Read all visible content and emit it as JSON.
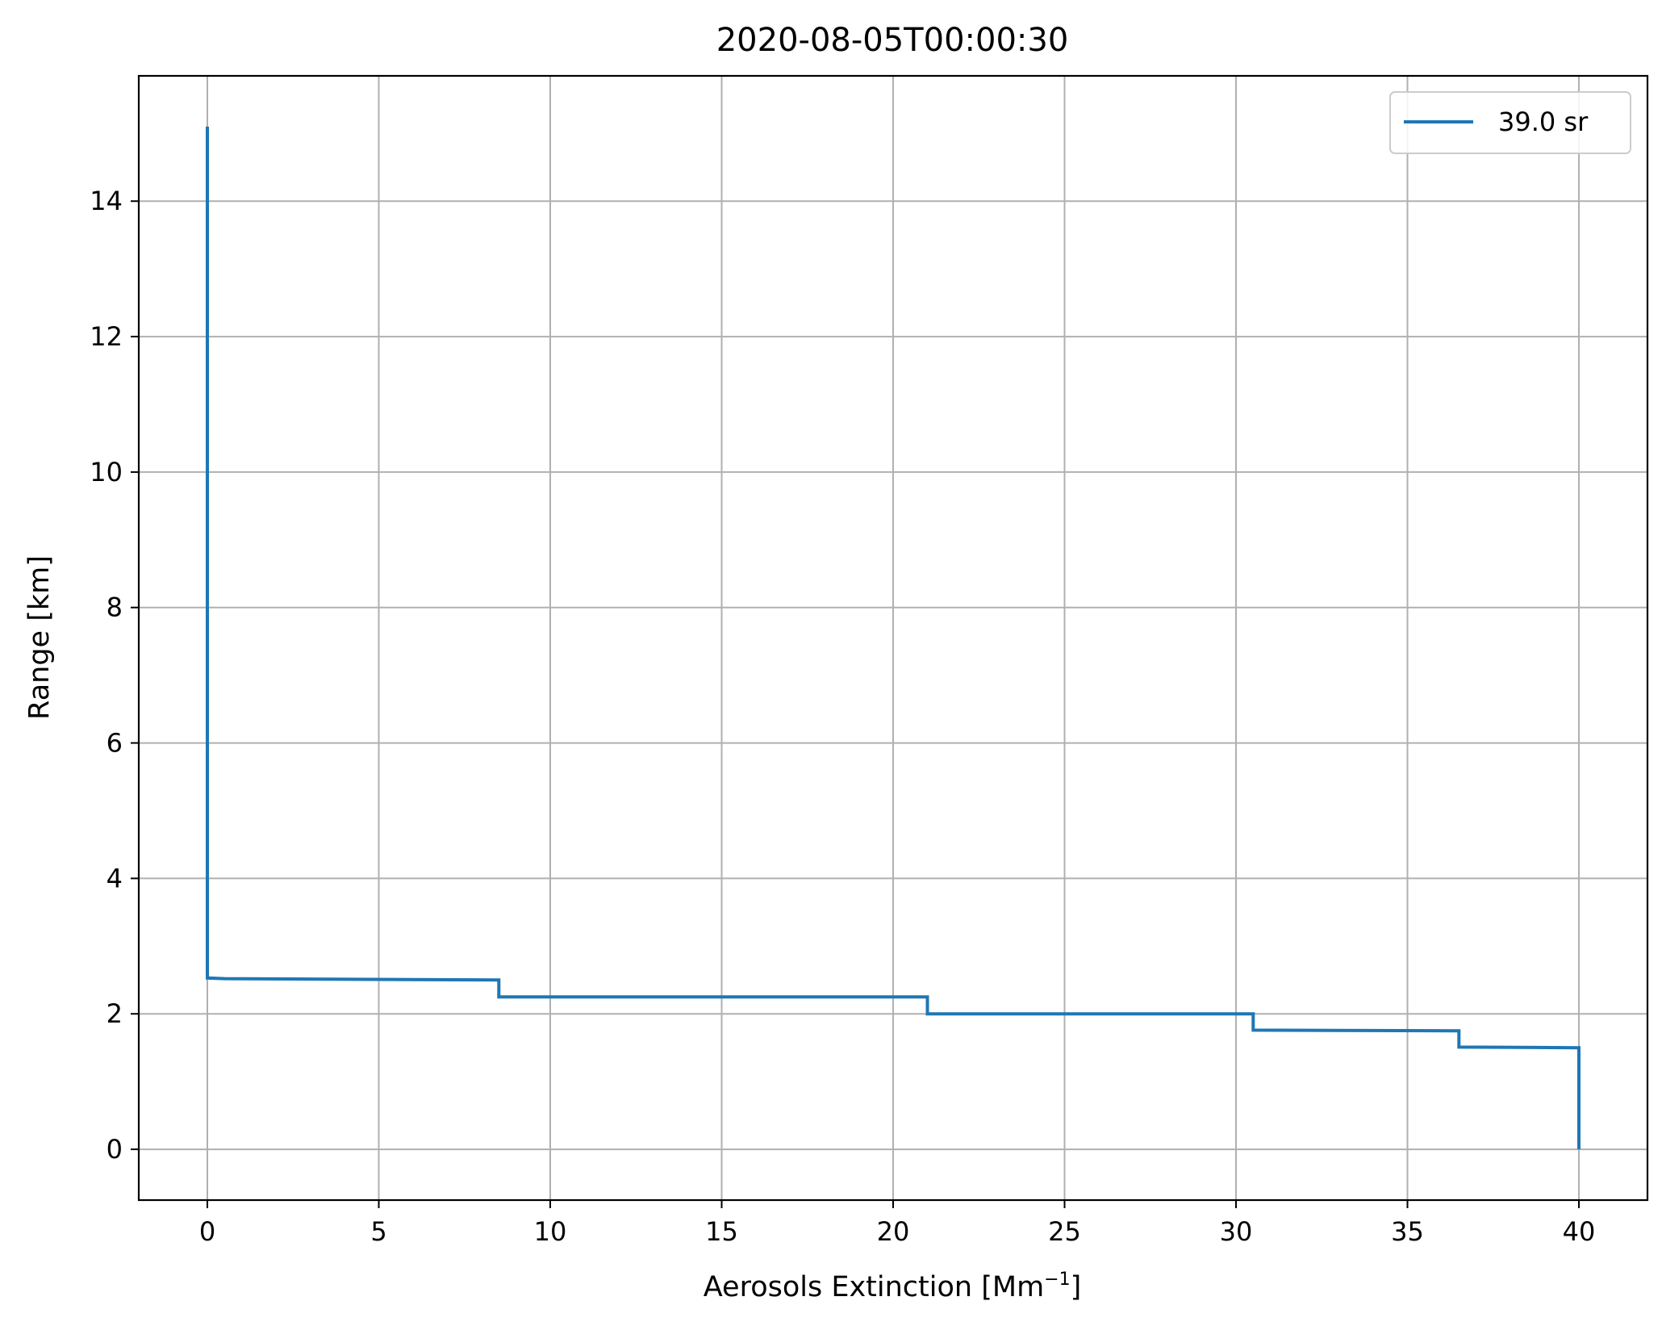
{
  "chart_data": {
    "type": "line",
    "title": "2020-08-05T00:00:30",
    "xlabel": "Aerosols Extinction [Mm",
    "xlabel_superscript": "−1",
    "xlabel_suffix": "]",
    "ylabel": "Range [km]",
    "xlim": [
      -2,
      42
    ],
    "ylim": [
      -0.75,
      15.85
    ],
    "xticks": [
      0,
      5,
      10,
      15,
      20,
      25,
      30,
      35,
      40
    ],
    "xtick_labels": [
      "0",
      "5",
      "10",
      "15",
      "20",
      "25",
      "30",
      "35",
      "40"
    ],
    "yticks": [
      0,
      2,
      4,
      6,
      8,
      10,
      12,
      14
    ],
    "ytick_labels": [
      "0",
      "2",
      "4",
      "6",
      "8",
      "10",
      "12",
      "14"
    ],
    "grid": true,
    "legend_placement": "top-right",
    "series": [
      {
        "name": "39.0 sr",
        "color": "#1f77b4",
        "points": [
          {
            "x": 40.0,
            "y": 0.0
          },
          {
            "x": 40.0,
            "y": 1.5
          },
          {
            "x": 36.5,
            "y": 1.51
          },
          {
            "x": 36.5,
            "y": 1.75
          },
          {
            "x": 30.5,
            "y": 1.76
          },
          {
            "x": 30.5,
            "y": 2.0
          },
          {
            "x": 21.0,
            "y": 2.0
          },
          {
            "x": 21.0,
            "y": 2.25
          },
          {
            "x": 8.5,
            "y": 2.25
          },
          {
            "x": 8.5,
            "y": 2.5
          },
          {
            "x": 0.5,
            "y": 2.52
          },
          {
            "x": 0.0,
            "y": 2.53
          },
          {
            "x": 0.0,
            "y": 15.1
          }
        ]
      }
    ]
  }
}
